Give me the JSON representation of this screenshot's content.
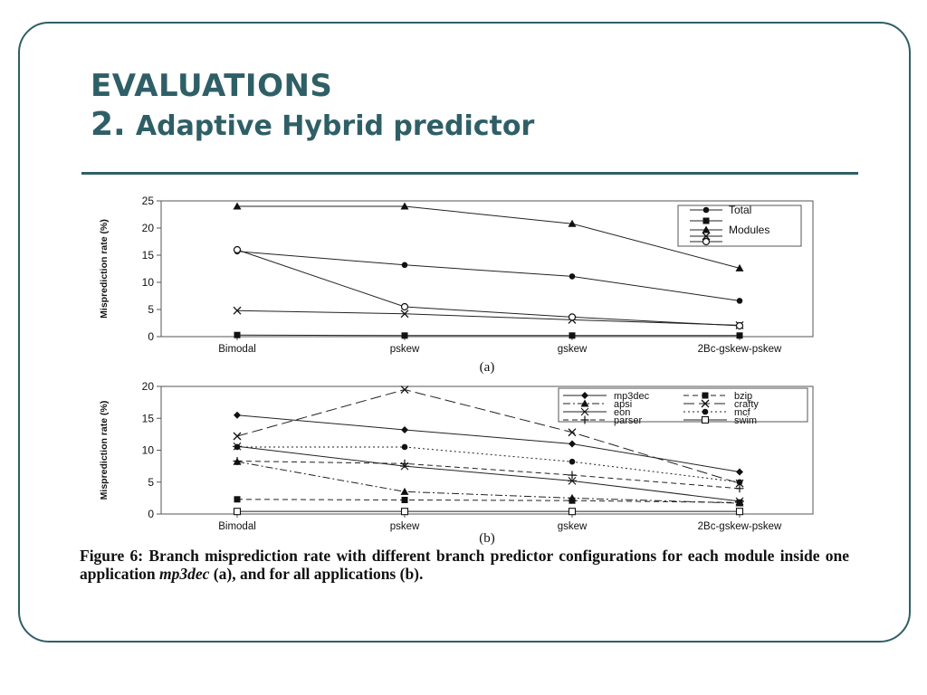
{
  "slide": {
    "title_line1": "EVALUATIONS",
    "title_num": "2.",
    "title_text": "Adaptive Hybrid predictor",
    "caption_part1": "Figure 6: Branch misprediction rate with different branch predictor configurations for each module inside one application",
    "caption_italic": "mp3dec",
    "caption_part2": "(a), and for all applications (b).",
    "accent_color": "#2f5f66"
  },
  "chart_data": [
    {
      "type": "line",
      "subtitle": "(a)",
      "ylabel": "Misprediction rate (%)",
      "xlabel": "",
      "categories": [
        "Bimodal",
        "pskew",
        "gskew",
        "2Bc-gskew-pskew"
      ],
      "ylim": [
        0,
        25
      ],
      "yticks": [
        0,
        5,
        10,
        15,
        20,
        25
      ],
      "grid": false,
      "legend_position": "top-right",
      "legend_labels": [
        "Total",
        "Modules"
      ],
      "series": [
        {
          "name": "Total",
          "marker": "circle",
          "values": [
            15.7,
            13.2,
            11.1,
            6.6
          ]
        },
        {
          "marker": "square",
          "values": [
            0.3,
            0.2,
            0.2,
            0.2
          ]
        },
        {
          "marker": "triangle",
          "values": [
            24.0,
            24.0,
            20.8,
            12.6
          ]
        },
        {
          "marker": "x",
          "values": [
            4.8,
            4.2,
            3.1,
            2.1
          ]
        },
        {
          "marker": "open-circle",
          "values": [
            16.0,
            5.5,
            3.6,
            2.0
          ]
        }
      ]
    },
    {
      "type": "line",
      "subtitle": "(b)",
      "ylabel": "Misprediction rate (%)",
      "xlabel": "",
      "categories": [
        "Bimodal",
        "pskew",
        "gskew",
        "2Bc-gskew-pskew"
      ],
      "ylim": [
        0,
        20
      ],
      "yticks": [
        0,
        5,
        10,
        15,
        20
      ],
      "grid": false,
      "legend_position": "top-right",
      "series": [
        {
          "name": "mp3dec",
          "marker": "diamond",
          "dash": "solid",
          "values": [
            15.5,
            13.2,
            11.0,
            6.6
          ]
        },
        {
          "name": "bzip",
          "marker": "square",
          "dash": "dashed",
          "values": [
            2.3,
            2.2,
            2.1,
            1.8
          ]
        },
        {
          "name": "apsi",
          "marker": "triangle",
          "dash": "dashdot",
          "values": [
            8.2,
            3.5,
            2.5,
            1.7
          ]
        },
        {
          "name": "crafty",
          "marker": "x",
          "dash": "longdash",
          "values": [
            12.2,
            19.5,
            12.8,
            4.8
          ]
        },
        {
          "name": "eon",
          "marker": "star",
          "dash": "solid",
          "values": [
            10.6,
            7.5,
            5.2,
            2.0
          ]
        },
        {
          "name": "mcf",
          "marker": "circle",
          "dash": "dotted",
          "values": [
            10.5,
            10.5,
            8.2,
            5.0
          ]
        },
        {
          "name": "parser",
          "marker": "plus",
          "dash": "dashed",
          "values": [
            8.3,
            7.9,
            6.1,
            4.0
          ]
        },
        {
          "name": "swim",
          "marker": "open-square",
          "dash": "solid",
          "values": [
            0.4,
            0.4,
            0.4,
            0.4
          ]
        }
      ]
    }
  ]
}
